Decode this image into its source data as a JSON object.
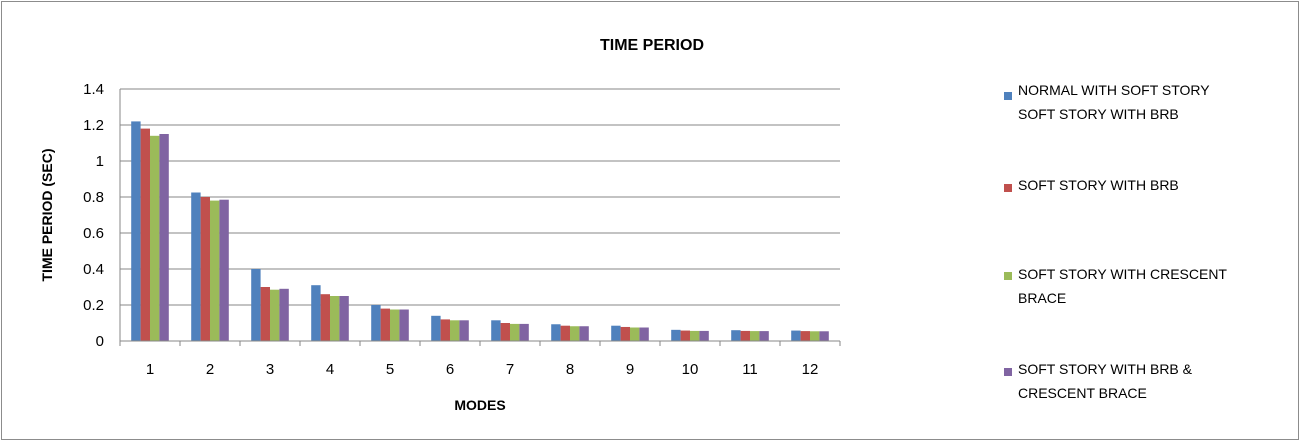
{
  "chart_data": {
    "type": "bar",
    "title": "TIME PERIOD",
    "xlabel": "MODES",
    "ylabel": "TIME PERIOD (SEC)",
    "ylim": [
      0,
      1.4
    ],
    "yticks": [
      "0",
      "0.2",
      "0.4",
      "0.6",
      "0.8",
      "1",
      "1.2",
      "1.4"
    ],
    "grid": true,
    "legend_position": "right",
    "categories": [
      "1",
      "2",
      "3",
      "4",
      "5",
      "6",
      "7",
      "8",
      "9",
      "10",
      "11",
      "12"
    ],
    "series": [
      {
        "name": "NORMAL WITH SOFT STORY SOFT STORY WITH BRB",
        "legend_lines": [
          "NORMAL WITH SOFT STORY",
          "SOFT STORY WITH BRB"
        ],
        "color": "#4f81bd",
        "values": [
          1.22,
          0.825,
          0.4,
          0.31,
          0.2,
          0.14,
          0.115,
          0.093,
          0.085,
          0.062,
          0.06,
          0.058
        ]
      },
      {
        "name": "SOFT STORY WITH BRB",
        "legend_lines": [
          "SOFT STORY WITH BRB"
        ],
        "color": "#c0504d",
        "values": [
          1.18,
          0.8,
          0.3,
          0.26,
          0.18,
          0.12,
          0.1,
          0.085,
          0.078,
          0.058,
          0.056,
          0.055
        ]
      },
      {
        "name": "SOFT STORY WITH CRESCENT BRACE",
        "legend_lines": [
          "SOFT STORY WITH CRESCENT",
          "BRACE"
        ],
        "color": "#9bbb59",
        "values": [
          1.14,
          0.78,
          0.285,
          0.25,
          0.175,
          0.115,
          0.095,
          0.082,
          0.075,
          0.056,
          0.055,
          0.054
        ]
      },
      {
        "name": "SOFT STORY WITH BRB & CRESCENT BRACE",
        "legend_lines": [
          "SOFT STORY WITH  BRB &",
          "CRESCENT BRACE"
        ],
        "color": "#8064a2",
        "values": [
          1.15,
          0.785,
          0.29,
          0.25,
          0.175,
          0.115,
          0.095,
          0.082,
          0.075,
          0.056,
          0.055,
          0.054
        ]
      }
    ]
  }
}
